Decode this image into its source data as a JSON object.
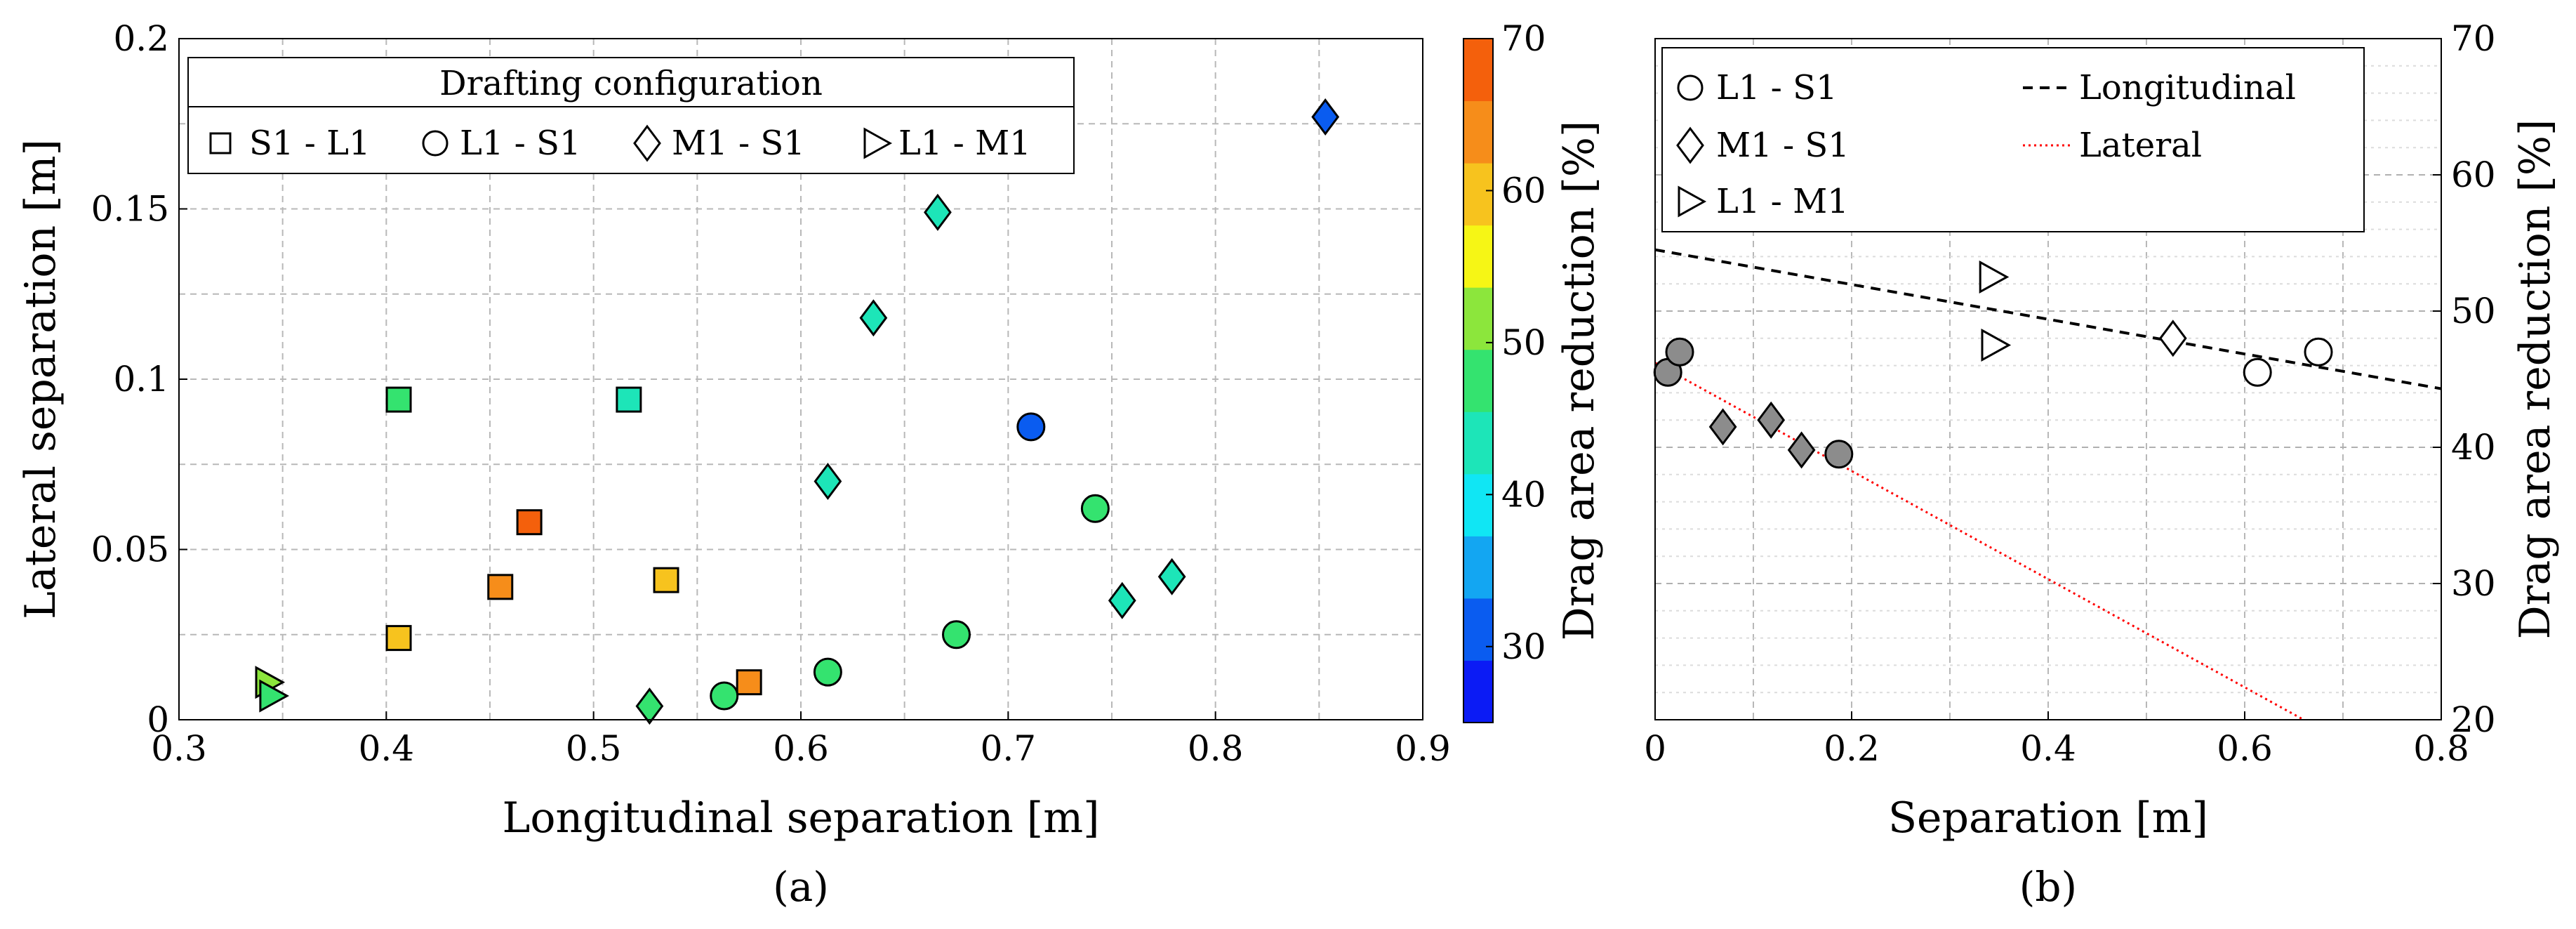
{
  "chart_data": [
    {
      "id": "a",
      "type": "scatter",
      "caption": "(a)",
      "xlabel": "Longitudinal separation [m]",
      "ylabel": "Lateral separation [m]",
      "xlim": [
        0.3,
        0.9
      ],
      "ylim": [
        0,
        0.2
      ],
      "xticks": [
        "0.3",
        "0.4",
        "0.5",
        "0.6",
        "0.7",
        "0.8",
        "0.9"
      ],
      "yticks": [
        "0",
        "0.05",
        "0.1",
        "0.15",
        "0.2"
      ],
      "grid": true,
      "legend": {
        "title": "Drafting configuration",
        "placement": "top-left",
        "entries": [
          {
            "label": "S1 - L1",
            "marker": "square"
          },
          {
            "label": "L1 - S1",
            "marker": "circle"
          },
          {
            "label": "M1 - S1",
            "marker": "diamond"
          },
          {
            "label": "L1 - M1",
            "marker": "triangle-right"
          }
        ]
      },
      "colorbar": {
        "label": "Drag area reduction [%]",
        "range": [
          25,
          70
        ],
        "ticks": [
          "30",
          "40",
          "50",
          "60",
          "70"
        ],
        "colors": [
          "#0b1bf5",
          "#0a5cf0",
          "#13a6f2",
          "#10e6f4",
          "#1de5b8",
          "#34e36f",
          "#8ce63c",
          "#f6f615",
          "#f7c31e",
          "#f68d1a",
          "#f4600c"
        ]
      },
      "series": [
        {
          "name": "S1 - L1",
          "marker": "square",
          "points": [
            {
              "x": 0.406,
              "y": 0.094,
              "reduction": 48
            },
            {
              "x": 0.517,
              "y": 0.094,
              "reduction": 43
            },
            {
              "x": 0.469,
              "y": 0.058,
              "reduction": 68
            },
            {
              "x": 0.455,
              "y": 0.039,
              "reduction": 63
            },
            {
              "x": 0.535,
              "y": 0.041,
              "reduction": 58
            },
            {
              "x": 0.406,
              "y": 0.024,
              "reduction": 58
            },
            {
              "x": 0.575,
              "y": 0.011,
              "reduction": 63
            }
          ]
        },
        {
          "name": "L1 - S1",
          "marker": "circle",
          "points": [
            {
              "x": 0.711,
              "y": 0.086,
              "reduction": 30
            },
            {
              "x": 0.742,
              "y": 0.062,
              "reduction": 48
            },
            {
              "x": 0.675,
              "y": 0.025,
              "reduction": 48
            },
            {
              "x": 0.613,
              "y": 0.014,
              "reduction": 48
            },
            {
              "x": 0.563,
              "y": 0.007,
              "reduction": 48
            }
          ]
        },
        {
          "name": "M1 - S1",
          "marker": "diamond",
          "points": [
            {
              "x": 0.853,
              "y": 0.177,
              "reduction": 33
            },
            {
              "x": 0.666,
              "y": 0.149,
              "reduction": 43
            },
            {
              "x": 0.635,
              "y": 0.118,
              "reduction": 43
            },
            {
              "x": 0.613,
              "y": 0.07,
              "reduction": 43
            },
            {
              "x": 0.779,
              "y": 0.042,
              "reduction": 43
            },
            {
              "x": 0.755,
              "y": 0.035,
              "reduction": 43
            },
            {
              "x": 0.527,
              "y": 0.004,
              "reduction": 48
            }
          ]
        },
        {
          "name": "L1 - M1",
          "marker": "triangle-right",
          "points": [
            {
              "x": 0.343,
              "y": 0.011,
              "reduction": 53
            },
            {
              "x": 0.345,
              "y": 0.007,
              "reduction": 48
            }
          ]
        }
      ]
    },
    {
      "id": "b",
      "type": "scatter",
      "caption": "(b)",
      "xlabel": "Separation [m]",
      "ylabel": "Drag area reduction [%]",
      "xlim": [
        0,
        0.8
      ],
      "ylim": [
        20,
        70
      ],
      "xticks": [
        "0",
        "0.2",
        "0.4",
        "0.6",
        "0.8"
      ],
      "yticks": [
        "20",
        "30",
        "40",
        "50",
        "60",
        "70"
      ],
      "grid": true,
      "legend": {
        "placement": "top-left",
        "entries": [
          {
            "label": "L1 - S1",
            "marker": "circle"
          },
          {
            "label": "M1 - S1",
            "marker": "diamond"
          },
          {
            "label": "L1 - M1",
            "marker": "triangle-right"
          },
          {
            "label": "Longitudinal",
            "marker": "dashed-line"
          },
          {
            "label": "Lateral",
            "marker": "dotted-line"
          }
        ]
      },
      "series": [
        {
          "name": "L1 - S1 (lateral)",
          "marker": "circle",
          "fill": "gray",
          "points": [
            [
              0.013,
              45.5
            ],
            [
              0.025,
              47.0
            ],
            [
              0.187,
              39.5
            ]
          ]
        },
        {
          "name": "M1 - S1 (lateral)",
          "marker": "diamond",
          "fill": "gray",
          "points": [
            [
              0.069,
              41.5
            ],
            [
              0.118,
              42.0
            ],
            [
              0.149,
              39.8
            ]
          ]
        },
        {
          "name": "L1 - S1 (longitudinal)",
          "marker": "circle",
          "fill": "white",
          "points": [
            [
              0.613,
              45.5
            ],
            [
              0.675,
              47.0
            ]
          ]
        },
        {
          "name": "M1 - S1 (longitudinal)",
          "marker": "diamond",
          "fill": "white",
          "points": [
            [
              0.527,
              48.0
            ]
          ]
        },
        {
          "name": "L1 - M1 (longitudinal)",
          "marker": "triangle-right",
          "fill": "white",
          "points": [
            [
              0.343,
              52.5
            ],
            [
              0.345,
              47.5
            ]
          ]
        },
        {
          "name": "Longitudinal",
          "type": "line",
          "style": "dashed",
          "color": "#000000",
          "points": [
            [
              0,
              54.5
            ],
            [
              0.8,
              44.3
            ]
          ]
        },
        {
          "name": "Lateral",
          "type": "line",
          "style": "dotted",
          "color": "#ff0000",
          "points": [
            [
              0,
              46.2
            ],
            [
              0.66,
              20
            ]
          ]
        }
      ]
    }
  ]
}
